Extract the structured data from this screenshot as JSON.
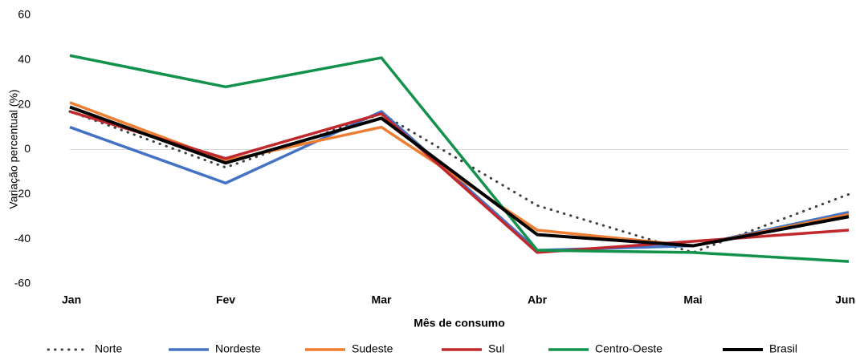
{
  "chart_data": {
    "type": "line",
    "x_label": "Mês de consumo",
    "y_label": "Variação percentual (%)",
    "categories": [
      "Jan",
      "Fev",
      "Mar",
      "Abr",
      "Mai",
      "Jun"
    ],
    "series": [
      {
        "name": "Norte",
        "color": "#404040",
        "dashed": true,
        "values": [
          17,
          -8,
          16,
          -25,
          -46,
          -20
        ]
      },
      {
        "name": "Nordeste",
        "color": "#4472c4",
        "values": [
          10,
          -15,
          17,
          -45,
          -43,
          -28
        ]
      },
      {
        "name": "Sudeste",
        "color": "#ed7d31",
        "values": [
          21,
          -5,
          10,
          -36,
          -43,
          -29
        ]
      },
      {
        "name": "Sul",
        "color": "#c0282d",
        "values": [
          17,
          -4,
          16,
          -46,
          -41,
          -36
        ]
      },
      {
        "name": "Centro-Oeste",
        "color": "#12924b",
        "values": [
          42,
          28,
          41,
          -45,
          -46,
          -50
        ]
      },
      {
        "name": "Brasil",
        "color": "#000000",
        "values": [
          19,
          -6,
          14,
          -38,
          -43,
          -30
        ]
      }
    ],
    "ylim": [
      -60,
      60
    ],
    "yticks": [
      -60,
      -40,
      -20,
      0,
      20,
      40,
      60
    ],
    "legend": "bottom"
  }
}
